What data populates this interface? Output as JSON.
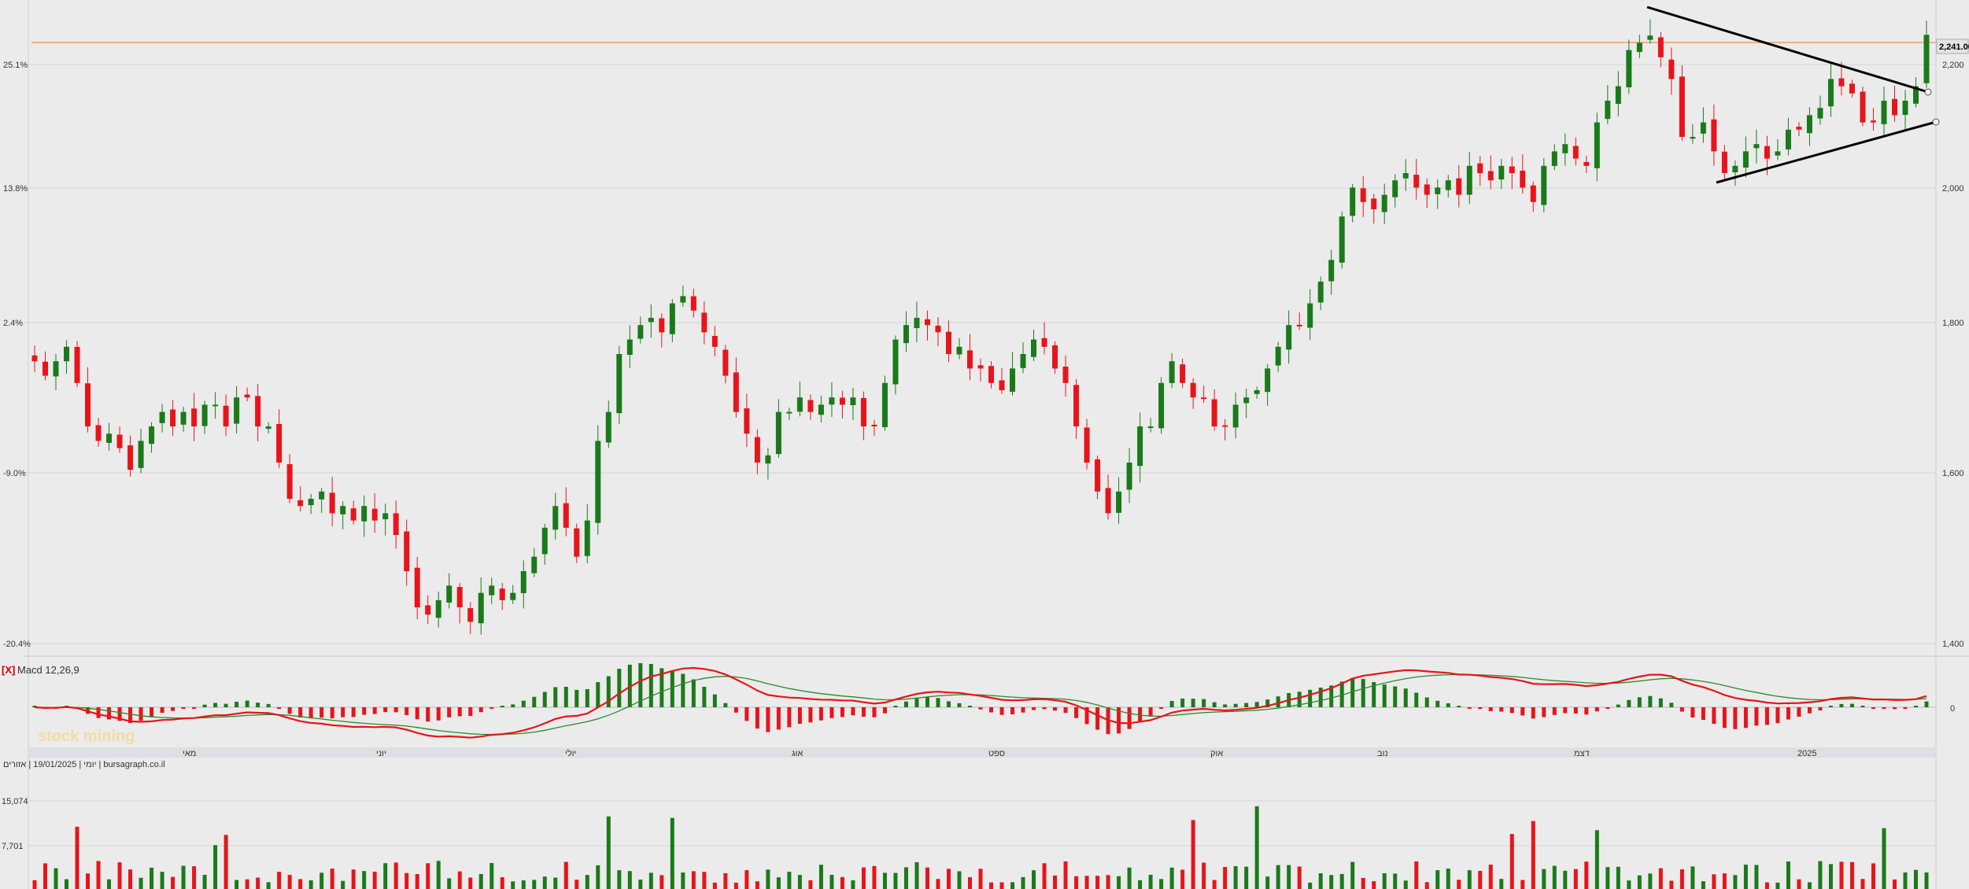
{
  "colors": {
    "up": "#1a7a1a",
    "down": "#e8141a",
    "macd_line": "#e8141a",
    "signal_line": "#2a8a2a",
    "price_line": "#e3a36a",
    "trend": "#000000",
    "grid": "#d6d6d6",
    "background": "#ebebeb"
  },
  "chart_data": [
    {
      "type": "candlestick",
      "title": "",
      "ylim": [
        1300,
        2300
      ],
      "y_ticks_right": [
        "2,200",
        "2,000",
        "1,800",
        "1,600",
        "1,400"
      ],
      "y_ticks_left": [
        "25.1%",
        "13.8%",
        "2.4%",
        "-9.0%",
        "-20.4%"
      ],
      "last_price_label": "2,241.00",
      "last_price": 2241,
      "series_approx": [
        1790,
        1770,
        1790,
        1810,
        1760,
        1700,
        1680,
        1690,
        1670,
        1640,
        1680,
        1700,
        1720,
        1700,
        1720,
        1700,
        1730,
        1730,
        1700,
        1740,
        1740,
        1700,
        1700,
        1650,
        1600,
        1590,
        1600,
        1610,
        1580,
        1590,
        1570,
        1590,
        1570,
        1580,
        1550,
        1500,
        1450,
        1440,
        1460,
        1480,
        1450,
        1430,
        1470,
        1480,
        1460,
        1470,
        1500,
        1520,
        1560,
        1590,
        1560,
        1520,
        1570,
        1680,
        1720,
        1800,
        1820,
        1840,
        1850,
        1830,
        1870,
        1880,
        1860,
        1830,
        1810,
        1770,
        1720,
        1690,
        1650,
        1660,
        1720,
        1720,
        1740,
        1720,
        1730,
        1740,
        1730,
        1740,
        1700,
        1700,
        1760,
        1820,
        1840,
        1850,
        1840,
        1830,
        1800,
        1810,
        1780,
        1780,
        1760,
        1750,
        1780,
        1800,
        1820,
        1810,
        1780,
        1760,
        1700,
        1650,
        1610,
        1580,
        1610,
        1650,
        1700,
        1700,
        1760,
        1790,
        1760,
        1740,
        1740,
        1700,
        1700,
        1730,
        1740,
        1750,
        1780,
        1810,
        1840,
        1840,
        1870,
        1900,
        1930,
        1990,
        2030,
        2010,
        2000,
        2020,
        2040,
        2050,
        2030,
        2020,
        2030,
        2040,
        2020,
        2060,
        2050,
        2040,
        2060,
        2050,
        2030,
        2010,
        2060,
        2080,
        2090,
        2070,
        2060,
        2120,
        2150,
        2170,
        2220,
        2230,
        2240,
        2210,
        2180,
        2100,
        2100,
        2120,
        2080,
        2050,
        2060,
        2080,
        2090,
        2070,
        2080,
        2110,
        2110,
        2130,
        2140,
        2180,
        2170,
        2160,
        2120,
        2120,
        2150,
        2130,
        2150,
        2170,
        2241
      ]
    },
    {
      "type": "line",
      "title": "Macd 12,26,9",
      "close_marker": "[X]",
      "zero_label": "0",
      "x_tick_labels": [
        "מאי",
        "יוני",
        "יולי",
        "אוג",
        "ספט",
        "אוק",
        "נוב",
        "דצמ",
        "2025"
      ]
    },
    {
      "type": "bar",
      "title": "",
      "y_ticks": [
        "15,074",
        "7,701"
      ]
    }
  ],
  "meta_line": "יומי | 19/01/2025 | אזורים | bursagraph.co.il",
  "watermark": "stock mining"
}
